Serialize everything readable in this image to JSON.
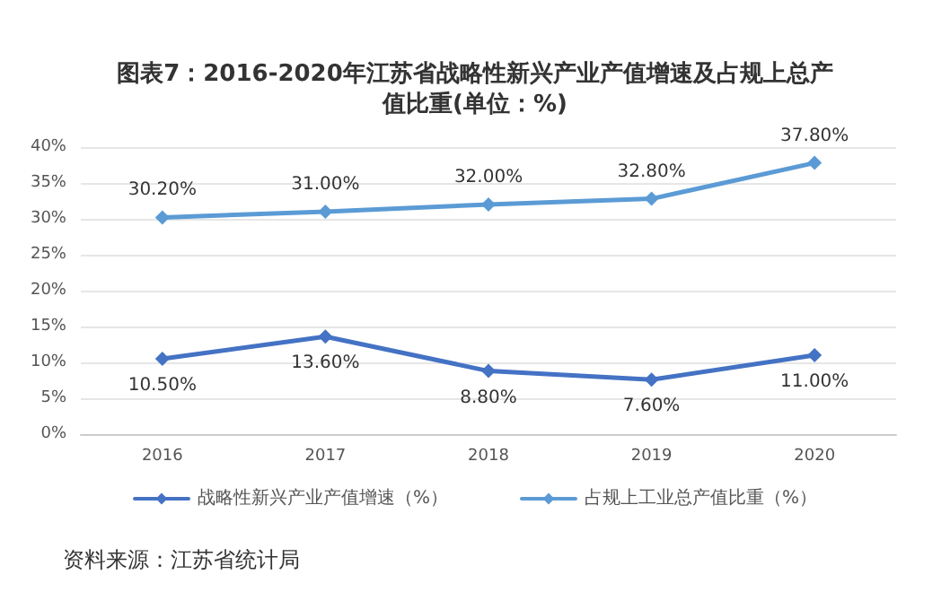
{
  "chart_data": {
    "type": "line",
    "title": "图表7：2016-2020年江苏省战略性新兴产业产值增速及占规上总产值比重(单位：%)",
    "categories": [
      "2016",
      "2017",
      "2018",
      "2019",
      "2020"
    ],
    "series": [
      {
        "name": "战略性新兴产业产值增速（%）",
        "color": "#4472c4",
        "values": [
          10.5,
          13.6,
          8.8,
          7.6,
          11.0
        ],
        "value_labels": [
          "10.50%",
          "13.60%",
          "8.80%",
          "7.60%",
          "11.00%"
        ]
      },
      {
        "name": "占规上工业总产值比重（%）",
        "color": "#5b9bd5",
        "values": [
          30.2,
          31.0,
          32.0,
          32.8,
          37.8
        ],
        "value_labels": [
          "30.20%",
          "31.00%",
          "32.00%",
          "32.80%",
          "37.80%"
        ]
      }
    ],
    "ylim": [
      0,
      40
    ],
    "yticks": [
      {
        "value": 0,
        "label": "0%"
      },
      {
        "value": 5,
        "label": "5%"
      },
      {
        "value": 10,
        "label": "10%"
      },
      {
        "value": 15,
        "label": "15%"
      },
      {
        "value": 20,
        "label": "20%"
      },
      {
        "value": 25,
        "label": "25%"
      },
      {
        "value": 30,
        "label": "30%"
      },
      {
        "value": 35,
        "label": "35%"
      },
      {
        "value": 40,
        "label": "40%"
      }
    ],
    "grid": "y",
    "legend": "bottom",
    "marker": "diamond",
    "line_style": "solid",
    "annotations": [
      "资料来源：江苏省统计局"
    ]
  }
}
